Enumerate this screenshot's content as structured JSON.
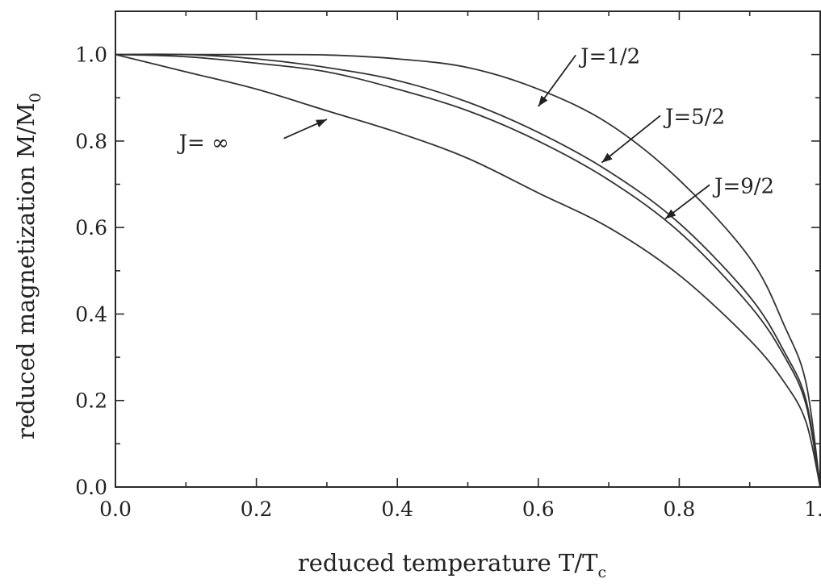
{
  "chart_data": {
    "type": "line",
    "xlabel": "reduced temperature T/T",
    "xlabel_sub": "c",
    "ylabel": "reduced magnetization M/M",
    "ylabel_sub": "0",
    "xlim": [
      0.0,
      1.0
    ],
    "ylim": [
      0.0,
      1.1
    ],
    "x_ticks": [
      "0.0",
      "0.2",
      "0.4",
      "0.6",
      "0.8",
      "1.0"
    ],
    "y_ticks": [
      "0.0",
      "0.2",
      "0.4",
      "0.6",
      "0.8",
      "1.0"
    ],
    "grid": false,
    "legend": "none",
    "series": [
      {
        "name": "J=1/2",
        "x": [
          0.0,
          0.1,
          0.2,
          0.3,
          0.4,
          0.5,
          0.6,
          0.7,
          0.8,
          0.9,
          0.95,
          0.98,
          1.0
        ],
        "y": [
          1.0,
          1.0,
          1.0,
          0.999,
          0.99,
          0.97,
          0.92,
          0.84,
          0.71,
          0.53,
          0.37,
          0.24,
          0.0
        ]
      },
      {
        "name": "J=5/2",
        "x": [
          0.0,
          0.1,
          0.2,
          0.3,
          0.4,
          0.5,
          0.6,
          0.7,
          0.8,
          0.9,
          0.95,
          0.98,
          1.0
        ],
        "y": [
          1.0,
          1.0,
          0.99,
          0.97,
          0.94,
          0.89,
          0.82,
          0.73,
          0.61,
          0.44,
          0.31,
          0.2,
          0.0
        ]
      },
      {
        "name": "J=9/2",
        "x": [
          0.0,
          0.1,
          0.2,
          0.3,
          0.4,
          0.5,
          0.6,
          0.7,
          0.8,
          0.9,
          0.95,
          0.98,
          1.0
        ],
        "y": [
          1.0,
          0.995,
          0.98,
          0.96,
          0.92,
          0.87,
          0.8,
          0.71,
          0.59,
          0.42,
          0.3,
          0.19,
          0.0
        ]
      },
      {
        "name": "J= ∞",
        "x": [
          0.0,
          0.1,
          0.2,
          0.3,
          0.4,
          0.5,
          0.6,
          0.7,
          0.8,
          0.9,
          0.95,
          0.98,
          1.0
        ],
        "y": [
          1.0,
          0.96,
          0.92,
          0.87,
          0.82,
          0.76,
          0.68,
          0.6,
          0.49,
          0.34,
          0.24,
          0.15,
          0.0
        ]
      }
    ],
    "annotations": [
      {
        "text": "J=1/2",
        "x": 0.66,
        "y": 0.98,
        "arrow_to": [
          0.6,
          0.88
        ]
      },
      {
        "text": "J=5/2",
        "x": 0.78,
        "y": 0.84,
        "arrow_to": [
          0.69,
          0.75
        ]
      },
      {
        "text": "J=9/2",
        "x": 0.85,
        "y": 0.68,
        "arrow_to": [
          0.78,
          0.62
        ]
      },
      {
        "text": "J= ∞",
        "x": 0.09,
        "y": 0.78,
        "arrow_to": [
          0.3,
          0.85
        ]
      }
    ]
  }
}
